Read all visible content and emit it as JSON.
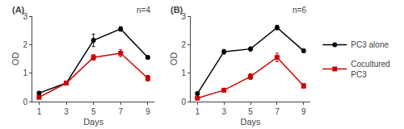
{
  "chart_data": [
    {
      "type": "line",
      "annotations": [
        "(A)",
        "n=4"
      ],
      "x": [
        1,
        3,
        5,
        7,
        9
      ],
      "xlabel": "Days",
      "ylabel": "OD",
      "xlim": [
        0.5,
        9.5
      ],
      "xticks": [
        1,
        3,
        5,
        7,
        9
      ],
      "ylim": [
        0,
        3
      ],
      "yticks": [
        0,
        1,
        2,
        3
      ],
      "grid": false,
      "legend": "right",
      "series": [
        {
          "name": "PC3 alone",
          "color": "#000000",
          "marker": "circle",
          "line_style": "solid",
          "values": [
            0.3,
            0.65,
            2.15,
            2.55,
            1.55
          ],
          "error": [
            0.04,
            0.05,
            0.22,
            0.08,
            0.06
          ]
        },
        {
          "name": "Cocultured\nPC3",
          "color": "#cc0000",
          "marker": "square",
          "line_style": "solid",
          "values": [
            0.15,
            0.65,
            1.55,
            1.7,
            0.82
          ],
          "error": [
            0.03,
            0.05,
            0.1,
            0.12,
            0.1
          ]
        }
      ]
    },
    {
      "type": "line",
      "annotations": [
        "(B)",
        "n=6"
      ],
      "x": [
        1,
        3,
        5,
        7,
        9
      ],
      "xlabel": "Days",
      "ylabel": "OD",
      "xlim": [
        0.5,
        9.5
      ],
      "xticks": [
        1,
        3,
        5,
        7,
        9
      ],
      "ylim": [
        0,
        3
      ],
      "yticks": [
        0,
        1,
        2,
        3
      ],
      "grid": false,
      "legend": "right",
      "series": [
        {
          "name": "PC3 alone",
          "color": "#000000",
          "marker": "circle",
          "line_style": "solid",
          "values": [
            0.28,
            1.75,
            1.85,
            2.6,
            1.78
          ],
          "error": [
            0.03,
            0.08,
            0.07,
            0.08,
            0.05
          ]
        },
        {
          "name": "Cocultured\nPC3",
          "color": "#cc0000",
          "marker": "square",
          "line_style": "solid",
          "values": [
            0.12,
            0.4,
            0.88,
            1.55,
            0.55
          ],
          "error": [
            0.03,
            0.06,
            0.1,
            0.15,
            0.08
          ]
        }
      ]
    }
  ]
}
